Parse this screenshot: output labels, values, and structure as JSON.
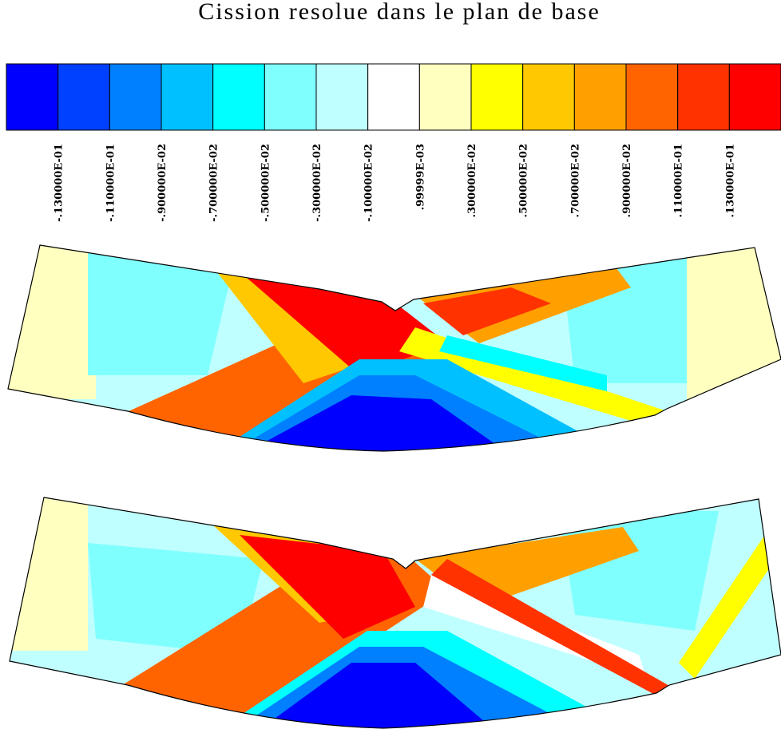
{
  "title": "Cission resolue dans le plan de base",
  "legend": {
    "colors": [
      "#0000ff",
      "#0040ff",
      "#0080ff",
      "#00c0ff",
      "#00ffff",
      "#80ffff",
      "#c0ffff",
      "#ffffff",
      "#ffffc0",
      "#ffff00",
      "#ffc800",
      "#ffa000",
      "#ff6400",
      "#ff3200",
      "#ff0000"
    ],
    "labels": [
      "-.130000E-01",
      "-.110000E-01",
      "-.900000E-02",
      "-.700000E-02",
      "-.500000E-02",
      "-.300000E-02",
      "-.100000E-02",
      ".99999E-03",
      ".300000E-02",
      ".500000E-02",
      ".700000E-02",
      ".900000E-02",
      ".110000E-01",
      ".130000E-01"
    ]
  }
}
